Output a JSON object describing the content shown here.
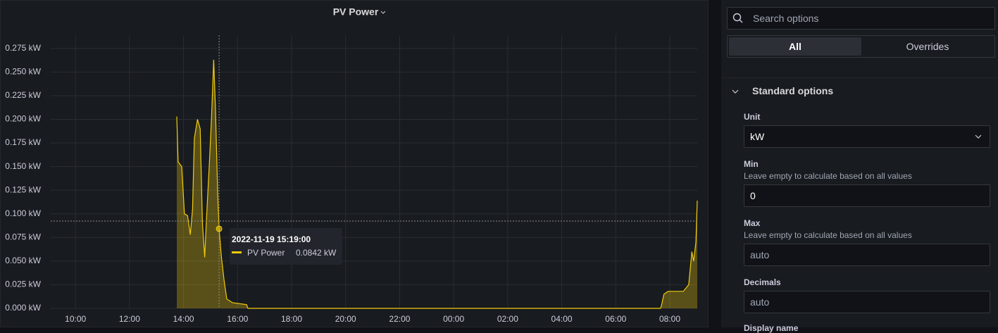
{
  "chart_data": {
    "type": "line",
    "title": "PV Power",
    "x": [
      "2022-11-19 13:45",
      "2022-11-19 13:48",
      "2022-11-19 13:56",
      "2022-11-19 14:02",
      "2022-11-19 14:09",
      "2022-11-19 14:15",
      "2022-11-19 14:20",
      "2022-11-19 14:24",
      "2022-11-19 14:31",
      "2022-11-19 14:37",
      "2022-11-19 14:42",
      "2022-11-19 14:47",
      "2022-11-19 14:51",
      "2022-11-19 14:57",
      "2022-11-19 15:02",
      "2022-11-19 15:07",
      "2022-11-19 15:11",
      "2022-11-19 15:16",
      "2022-11-19 15:19",
      "2022-11-19 15:24",
      "2022-11-19 15:30",
      "2022-11-19 15:36",
      "2022-11-19 15:49",
      "2022-11-19 16:20",
      "2022-11-19 16:23",
      "2022-11-20 07:39",
      "2022-11-20 07:41",
      "2022-11-20 07:47",
      "2022-11-20 07:56",
      "2022-11-20 08:30",
      "2022-11-20 08:42",
      "2022-11-20 08:49",
      "2022-11-20 08:53",
      "2022-11-20 08:58",
      "2022-11-20 09:01"
    ],
    "series": [
      {
        "name": "PV Power",
        "color": "#f2cc0c",
        "values": [
          0.203,
          0.155,
          0.15,
          0.1,
          0.098,
          0.078,
          0.105,
          0.18,
          0.2,
          0.19,
          0.09,
          0.054,
          0.095,
          0.15,
          0.2,
          0.263,
          0.21,
          0.12,
          0.0842,
          0.055,
          0.03,
          0.01,
          0.006,
          0.004,
          0.0,
          0.0,
          0.002,
          0.015,
          0.018,
          0.018,
          0.025,
          0.06,
          0.05,
          0.07,
          0.114
        ]
      }
    ],
    "xlim": [
      "2022-11-19 09:05",
      "2022-11-20 09:01"
    ],
    "xticks": [
      {
        "value": "2022-11-19 10:00",
        "label": "10:00"
      },
      {
        "value": "2022-11-19 12:00",
        "label": "12:00"
      },
      {
        "value": "2022-11-19 14:00",
        "label": "14:00"
      },
      {
        "value": "2022-11-19 16:00",
        "label": "16:00"
      },
      {
        "value": "2022-11-19 18:00",
        "label": "18:00"
      },
      {
        "value": "2022-11-19 20:00",
        "label": "20:00"
      },
      {
        "value": "2022-11-19 22:00",
        "label": "22:00"
      },
      {
        "value": "2022-11-20 00:00",
        "label": "00:00"
      },
      {
        "value": "2022-11-20 02:00",
        "label": "02:00"
      },
      {
        "value": "2022-11-20 04:00",
        "label": "04:00"
      },
      {
        "value": "2022-11-20 06:00",
        "label": "06:00"
      },
      {
        "value": "2022-11-20 08:00",
        "label": "08:00"
      }
    ],
    "ylim": [
      0,
      0.289
    ],
    "yticks": [
      {
        "value": 0,
        "label": "0.000 kW"
      },
      {
        "value": 0.025,
        "label": "0.025 kW"
      },
      {
        "value": 0.05,
        "label": "0.050 kW"
      },
      {
        "value": 0.075,
        "label": "0.075 kW"
      },
      {
        "value": 0.1,
        "label": "0.100 kW"
      },
      {
        "value": 0.125,
        "label": "0.125 kW"
      },
      {
        "value": 0.15,
        "label": "0.150 kW"
      },
      {
        "value": 0.175,
        "label": "0.175 kW"
      },
      {
        "value": 0.2,
        "label": "0.200 kW"
      },
      {
        "value": 0.225,
        "label": "0.225 kW"
      },
      {
        "value": 0.25,
        "label": "0.250 kW"
      },
      {
        "value": 0.275,
        "label": "0.275 kW"
      }
    ],
    "grid": true,
    "tooltip": {
      "x": "2022-11-19 15:19",
      "time_label": "2022-11-19 15:19:00",
      "value": 0.0842,
      "value_label": "0.0842 kW"
    }
  },
  "options": {
    "search_placeholder": "Search options",
    "tabs": [
      "All",
      "Overrides"
    ],
    "section": "Standard options",
    "fields": [
      {
        "label": "Unit",
        "value": "kW"
      },
      {
        "label": "Min",
        "description": "Leave empty to calculate based on all values",
        "value": "0"
      },
      {
        "label": "Max",
        "description": "Leave empty to calculate based on all values",
        "placeholder": "auto"
      },
      {
        "label": "Decimals",
        "placeholder": "auto"
      },
      {
        "label": "Display name"
      }
    ]
  }
}
